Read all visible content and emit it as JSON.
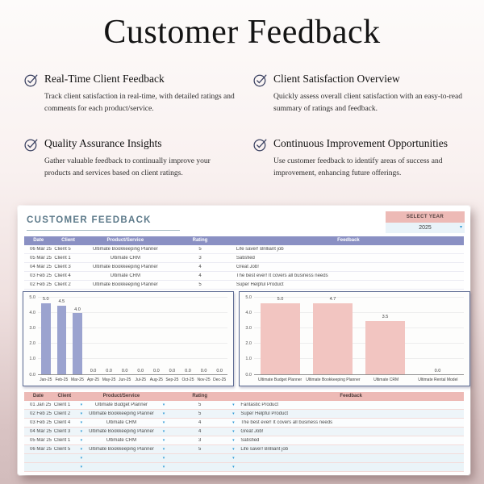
{
  "page": {
    "title": "Customer Feedback",
    "features": [
      {
        "title": "Real-Time Client Feedback",
        "desc": "Track client satisfaction in real-time, with detailed ratings and comments for each product/service."
      },
      {
        "title": "Client Satisfaction Overview",
        "desc": "Quickly assess overall client satisfaction with an easy-to-read summary of ratings and feedback."
      },
      {
        "title": "Quality Assurance Insights",
        "desc": "Gather valuable feedback to continually improve your products and services based on client ratings."
      },
      {
        "title": "Continuous Improvement Opportunities",
        "desc": "Use customer feedback to identify areas of success and improvement, enhancing future offerings."
      }
    ]
  },
  "sheet": {
    "title": "CUSTOMER FEEDBACK",
    "select_year_label": "SELECT YEAR",
    "year_value": "2025",
    "top_table": {
      "headers": [
        "Date",
        "Client",
        "Product/Service",
        "Rating",
        "Feedback"
      ],
      "rows": [
        [
          "06 Mar 25",
          "Client 5",
          "Ultimate Bookkeeping Planner",
          "5",
          "Life saver! Brilliant job"
        ],
        [
          "05 Mar 25",
          "Client 1",
          "Ultimate CRM",
          "3",
          "Satisfied"
        ],
        [
          "04 Mar 25",
          "Client 3",
          "Ultimate Bookkeeping Planner",
          "4",
          "Great Job!"
        ],
        [
          "03 Feb 25",
          "Client 4",
          "Ultimate CRM",
          "4",
          "The best ever! It covers all business needs"
        ],
        [
          "02 Feb 25",
          "Client 2",
          "Ultimate Bookkeeping Planner",
          "5",
          "Super Helpful Product"
        ]
      ]
    },
    "bottom_table": {
      "headers": [
        "Date",
        "Client",
        "Product/Service",
        "Rating",
        "Feedback"
      ],
      "rows": [
        [
          "01 Jan 25",
          "Client 1",
          "Ultimate Budget Planner",
          "5",
          "Fantastic Product"
        ],
        [
          "02 Feb 25",
          "Client 2",
          "Ultimate Bookkeeping Planner",
          "5",
          "Super Helpful Product"
        ],
        [
          "03 Feb 25",
          "Client 4",
          "Ultimate CRM",
          "4",
          "The best ever! It covers all business needs"
        ],
        [
          "04 Mar 25",
          "Client 3",
          "Ultimate Bookkeeping Planner",
          "4",
          "Great Job!"
        ],
        [
          "05 Mar 25",
          "Client 1",
          "Ultimate CRM",
          "3",
          "Satisfied"
        ],
        [
          "06 Mar 25",
          "Client 5",
          "Ultimate Bookkeeping Planner",
          "5",
          "Life saver! Brilliant job"
        ],
        [
          "",
          "",
          "",
          "",
          ""
        ],
        [
          "",
          "",
          "",
          "",
          ""
        ]
      ]
    }
  },
  "chart_data": [
    {
      "type": "bar",
      "title": "",
      "categories": [
        "Jan-25",
        "Feb-25",
        "Mar-25",
        "Apr-25",
        "May-25",
        "Jun-25",
        "Jul-25",
        "Aug-25",
        "Sep-25",
        "Oct-25",
        "Nov-25",
        "Dec-25"
      ],
      "values": [
        5.0,
        4.5,
        4.0,
        0.0,
        0.0,
        0.0,
        0.0,
        0.0,
        0.0,
        0.0,
        0.0,
        0.0
      ],
      "xlabel": "",
      "ylabel": "",
      "ylim": [
        0,
        5
      ],
      "yticks": [
        0,
        1,
        2,
        3,
        4,
        5
      ],
      "grid": true,
      "legend": false,
      "data_labels": true,
      "bar_color": "#9ba3cf"
    },
    {
      "type": "bar",
      "title": "",
      "categories": [
        "Ultimate Budget Planner",
        "Ultimate Bookkeeping Planner",
        "Ultimate CRM",
        "Ultimate Rental Model"
      ],
      "values": [
        5.0,
        4.7,
        3.5,
        0.0
      ],
      "xlabel": "",
      "ylabel": "",
      "ylim": [
        0,
        5
      ],
      "yticks": [
        0,
        1,
        2,
        3,
        4,
        5
      ],
      "grid": true,
      "legend": false,
      "data_labels": true,
      "bar_color": "#f2c5c1"
    }
  ],
  "icons": {
    "feature_bullet": "check-circle-icon",
    "year_dropdown": "chevron-down-icon",
    "cell_dropdown": "chevron-down-icon"
  },
  "colors": {
    "accent_navy": "#3b4262",
    "sheet_title": "#5d7a8a",
    "purple_header": "#8a90c3",
    "purple_bar": "#9ba3cf",
    "pink_header": "#edbab6",
    "pink_bar": "#f2c5c1",
    "dropdown_blue": "#2e9bd6",
    "page_bottom": "#d2bcbc"
  }
}
